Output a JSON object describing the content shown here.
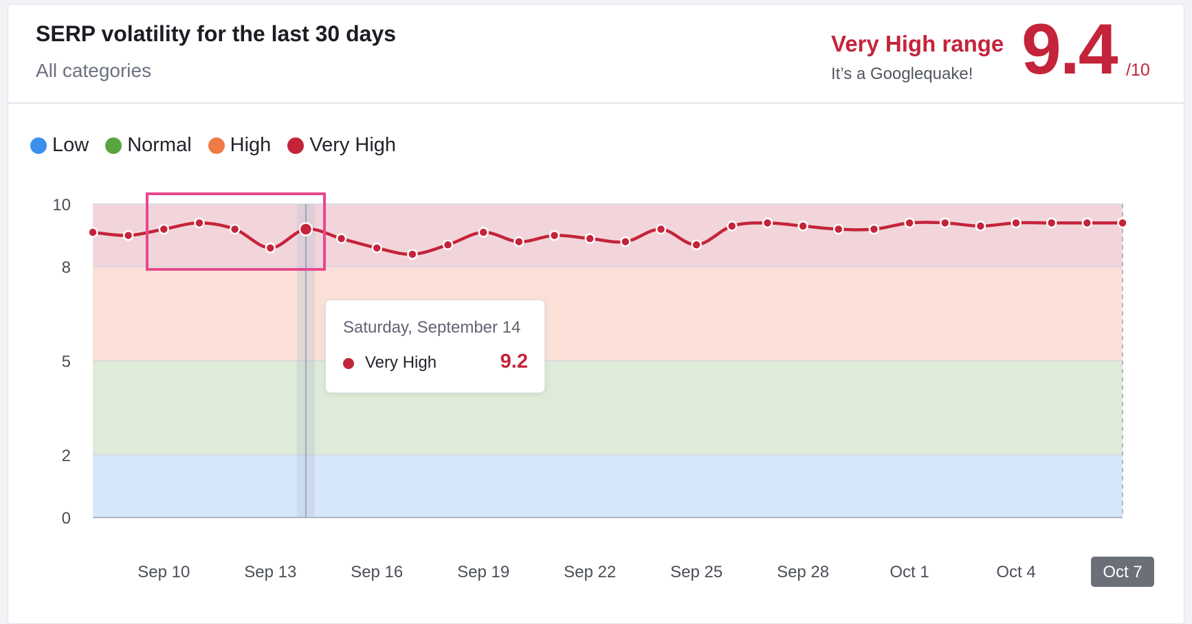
{
  "header": {
    "title": "SERP volatility for the last 30 days",
    "subtitle": "All categories",
    "range_label": "Very High range",
    "range_sub": "It’s a Googlequake!",
    "score": "9.4",
    "score_max": "/10"
  },
  "colors": {
    "accent": "#c4243a",
    "low": "#3b8fef",
    "normal": "#58a441",
    "high": "#f07a45",
    "very_high": "#c4243a",
    "band_low": "#d6e6fb",
    "band_normal": "#ddebd8",
    "band_high": "#fbe0d8",
    "band_very_high": "#f2d5da",
    "highlight_box": "#e8488f"
  },
  "legend": [
    {
      "label": "Low",
      "color": "#3b8fef"
    },
    {
      "label": "Normal",
      "color": "#58a441"
    },
    {
      "label": "High",
      "color": "#f07a45"
    },
    {
      "label": "Very High",
      "color": "#c4243a"
    }
  ],
  "tooltip": {
    "date": "Saturday, September 14",
    "series": "Very High",
    "value": "9.2"
  },
  "chart_data": {
    "type": "area",
    "title": "",
    "xlabel": "",
    "ylabel": "",
    "ylim": [
      0,
      10
    ],
    "yticks": [
      0,
      2,
      5,
      8,
      10
    ],
    "xtick_labels": [
      "Sep 10",
      "Sep 13",
      "Sep 16",
      "Sep 19",
      "Sep 22",
      "Sep 25",
      "Sep 28",
      "Oct 1",
      "Oct 4",
      "Oct 7"
    ],
    "xtick_indices": [
      2,
      5,
      8,
      11,
      14,
      17,
      20,
      23,
      26,
      29
    ],
    "x": [
      "Sep 8",
      "Sep 9",
      "Sep 10",
      "Sep 11",
      "Sep 12",
      "Sep 13",
      "Sep 14",
      "Sep 15",
      "Sep 16",
      "Sep 17",
      "Sep 18",
      "Sep 19",
      "Sep 20",
      "Sep 21",
      "Sep 22",
      "Sep 23",
      "Sep 24",
      "Sep 25",
      "Sep 26",
      "Sep 27",
      "Sep 28",
      "Sep 29",
      "Sep 30",
      "Oct 1",
      "Oct 2",
      "Oct 3",
      "Oct 4",
      "Oct 5",
      "Oct 6",
      "Oct 7"
    ],
    "series": [
      {
        "name": "Very High",
        "color": "#c4243a",
        "values": [
          9.1,
          9.0,
          9.2,
          9.4,
          9.2,
          8.6,
          9.2,
          8.9,
          8.6,
          8.4,
          8.7,
          9.1,
          8.8,
          9.0,
          8.9,
          8.8,
          9.2,
          8.7,
          9.3,
          9.4,
          9.3,
          9.2,
          9.2,
          9.4,
          9.4,
          9.3,
          9.4,
          9.4,
          9.4,
          9.4
        ]
      }
    ],
    "bands": [
      {
        "label": "Low",
        "from": 0,
        "to": 2,
        "color": "#d6e6fb"
      },
      {
        "label": "Normal",
        "from": 2,
        "to": 5,
        "color": "#ddebd8"
      },
      {
        "label": "High",
        "from": 5,
        "to": 8,
        "color": "#fbe0d8"
      },
      {
        "label": "Very High",
        "from": 8,
        "to": 10,
        "color": "#f2d5da"
      }
    ],
    "hover_index": 6,
    "selected_xtick": "Oct 7",
    "grid": true,
    "legend_position": "top-left"
  }
}
